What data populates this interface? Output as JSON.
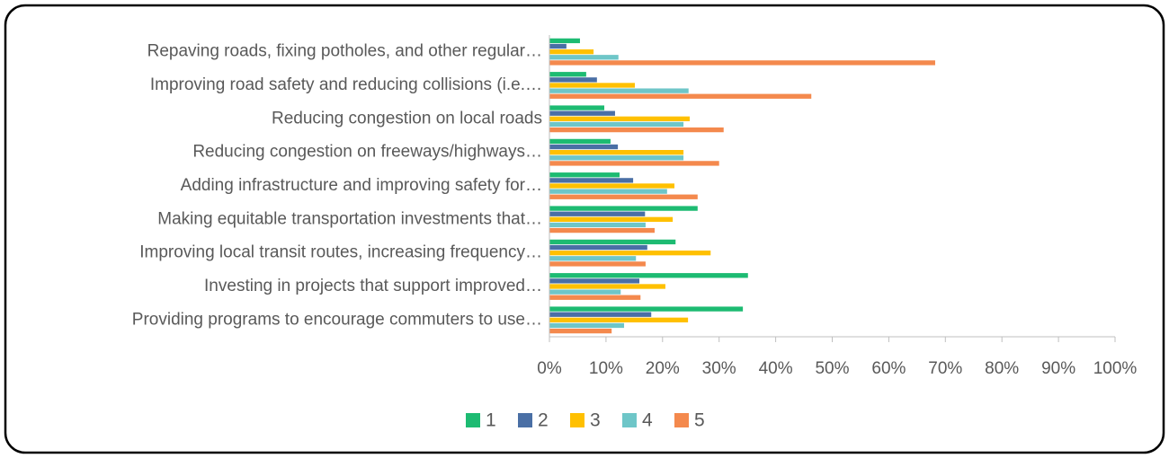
{
  "chart_data": {
    "type": "hbar",
    "categories": [
      "Repaving roads, fixing potholes, and other regular…",
      "Improving road safety and reducing collisions (i.e.…",
      "Reducing congestion on local roads",
      "Reducing congestion on freeways/highways…",
      "Adding infrastructure and improving safety for…",
      "Making equitable transportation investments that…",
      "Improving local transit routes, increasing frequency…",
      "Investing in projects that support improved…",
      "Providing programs to encourage commuters to use…"
    ],
    "series": [
      {
        "name": "1",
        "color": "#1dbb72",
        "values": [
          5.4,
          6.5,
          9.7,
          10.8,
          12.4,
          26.2,
          22.3,
          35.1,
          34.2
        ]
      },
      {
        "name": "2",
        "color": "#4a6fa5",
        "values": [
          3.0,
          8.4,
          11.6,
          12.1,
          14.8,
          16.9,
          17.3,
          15.9,
          18.0
        ]
      },
      {
        "name": "3",
        "color": "#ffc000",
        "values": [
          7.8,
          15.1,
          24.8,
          23.7,
          22.1,
          21.8,
          28.5,
          20.5,
          24.5
        ]
      },
      {
        "name": "4",
        "color": "#6ec6c8",
        "values": [
          12.2,
          24.6,
          23.7,
          23.7,
          20.8,
          17.0,
          15.3,
          12.6,
          13.2
        ]
      },
      {
        "name": "5",
        "color": "#f4894d",
        "values": [
          68.2,
          46.3,
          30.8,
          30.0,
          26.2,
          18.6,
          17.0,
          16.1,
          11.0
        ]
      }
    ],
    "xlim": [
      0,
      100
    ],
    "xticks": [
      {
        "value": 0,
        "label": "0%"
      },
      {
        "value": 10,
        "label": "10%"
      },
      {
        "value": 20,
        "label": "20%"
      },
      {
        "value": 30,
        "label": "30%"
      },
      {
        "value": 40,
        "label": "40%"
      },
      {
        "value": 50,
        "label": "50%"
      },
      {
        "value": 60,
        "label": "60%"
      },
      {
        "value": 70,
        "label": "70%"
      },
      {
        "value": 80,
        "label": "80%"
      },
      {
        "value": 90,
        "label": "90%"
      },
      {
        "value": 100,
        "label": "100%"
      }
    ],
    "grid": false,
    "legend": "bottom"
  }
}
